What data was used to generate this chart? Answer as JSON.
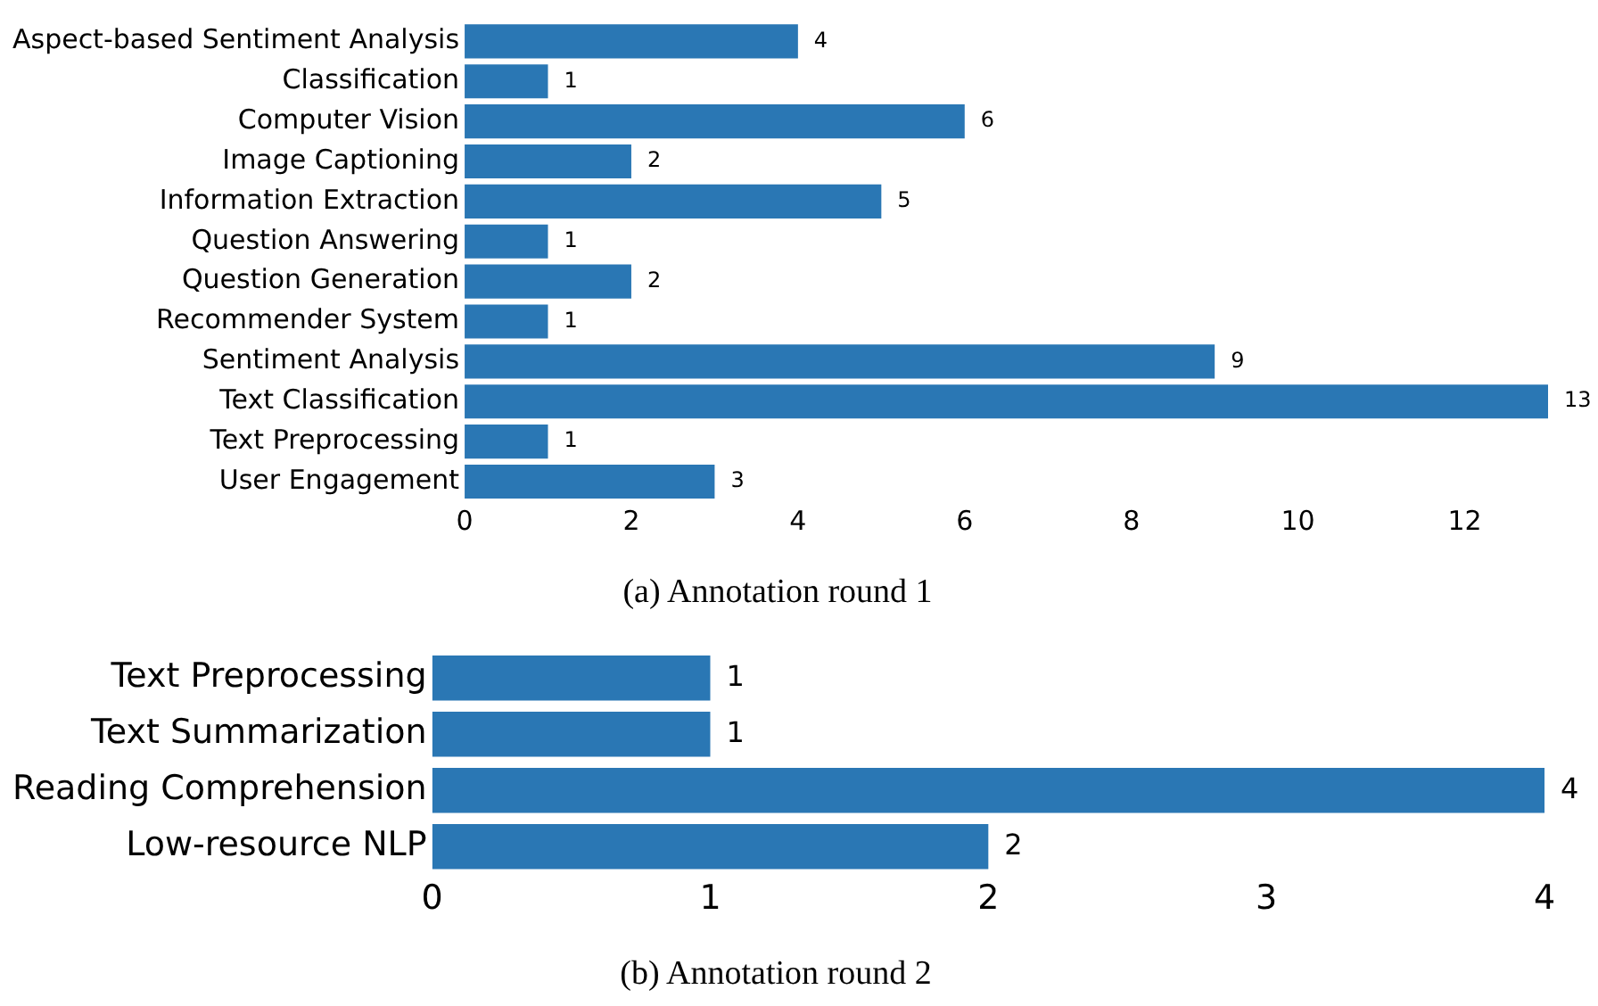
{
  "chart_data": [
    {
      "type": "bar",
      "orientation": "horizontal",
      "title": "(a) Annotation round 1",
      "categories": [
        "Aspect-based Sentiment Analysis",
        "Classification",
        "Computer Vision",
        "Image Captioning",
        "Information Extraction",
        "Question Answering",
        "Question Generation",
        "Recommender System",
        "Sentiment Analysis",
        "Text Classification",
        "Text Preprocessing",
        "User Engagement"
      ],
      "values": [
        4,
        1,
        6,
        2,
        5,
        1,
        2,
        1,
        9,
        13,
        1,
        3
      ],
      "color": "#2a77b4",
      "xlim": [
        0,
        13
      ],
      "xticks": [
        0,
        2,
        4,
        6,
        8,
        10,
        12
      ],
      "data_labels": true
    },
    {
      "type": "bar",
      "orientation": "horizontal",
      "title": "(b) Annotation round 2",
      "categories": [
        "Text Preprocessing",
        "Text Summarization",
        "Reading Comprehension",
        "Low-resource NLP"
      ],
      "values": [
        1,
        1,
        4,
        2
      ],
      "color": "#2a77b4",
      "xlim": [
        0,
        4
      ],
      "xticks": [
        0,
        1,
        2,
        3,
        4
      ],
      "data_labels": true
    }
  ]
}
